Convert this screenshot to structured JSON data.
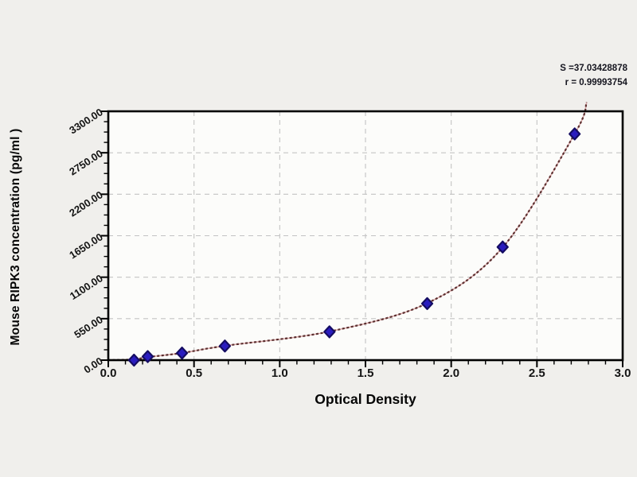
{
  "chart_data": {
    "type": "scatter",
    "title": "",
    "xlabel": "Optical Density",
    "ylabel": "Mouse RIPK3 concentration (pg/ml )",
    "xlim": [
      0.0,
      3.0
    ],
    "ylim": [
      0,
      3300
    ],
    "x_ticks": [
      "0.0",
      "0.5",
      "1.0",
      "1.5",
      "2.0",
      "2.5",
      "3.0"
    ],
    "y_ticks": [
      "0.00",
      "550.00",
      "1100.00",
      "1650.00",
      "2200.00",
      "2750.00",
      "3300.00"
    ],
    "x_minor_step": 0.1,
    "y_minor_step": 137.5,
    "grid": "dashed",
    "legend": "none",
    "series": [
      {
        "name": "standard-points",
        "marker": "diamond",
        "x": [
          0.15,
          0.23,
          0.43,
          0.68,
          1.29,
          1.86,
          2.3,
          2.72
        ],
        "y": [
          0,
          46.9,
          93.8,
          187.5,
          375,
          750,
          1500,
          3000
        ]
      }
    ],
    "fit_curve": {
      "name": "fitted-standard-curve",
      "style": "dotted",
      "points": [
        [
          0.0,
          0
        ],
        [
          0.15,
          10
        ],
        [
          0.23,
          40
        ],
        [
          0.43,
          95
        ],
        [
          0.68,
          190
        ],
        [
          1.29,
          380
        ],
        [
          1.86,
          755
        ],
        [
          2.3,
          1495
        ],
        [
          2.72,
          3000
        ],
        [
          2.79,
          3420
        ]
      ]
    },
    "annotations": [
      {
        "text": "S =37.03428878"
      },
      {
        "text": "r = 0.99993754"
      }
    ]
  },
  "colors": {
    "page_bg": "#f0efec",
    "plot_bg": "#fcfcfa",
    "grid": "#c3c3c3",
    "frame": "#000000",
    "curve_dark": "#5a2f2f",
    "curve_light": "#d8a0a0",
    "marker_fill": "#2a1cbe",
    "marker_stroke": "#140c62",
    "text": "#141414"
  }
}
